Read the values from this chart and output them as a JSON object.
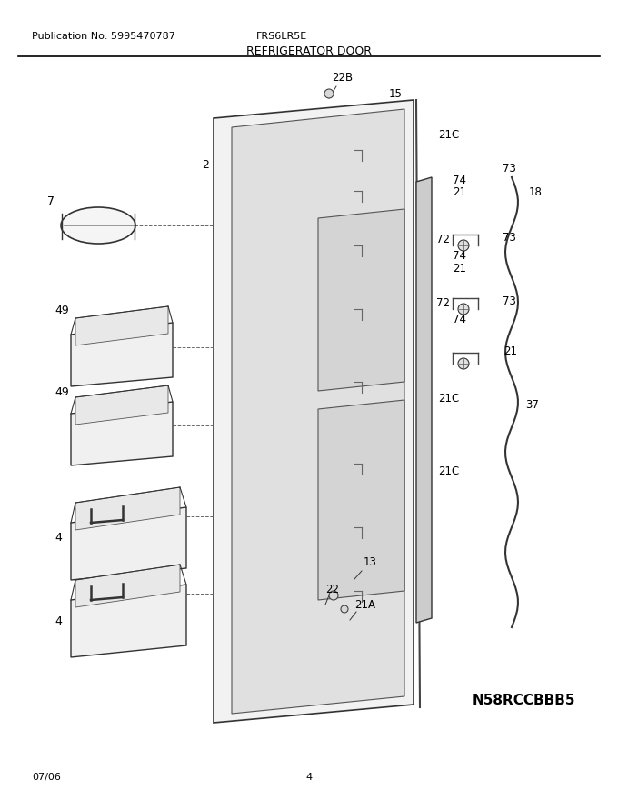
{
  "publication": "Publication No: 5995470787",
  "model": "FRS6LR5E",
  "title": "REFRIGERATOR DOOR",
  "diagram_id": "N58RCCBBB5",
  "date": "07/06",
  "page": "4",
  "bg_color": "#ffffff",
  "line_color": "#000000"
}
